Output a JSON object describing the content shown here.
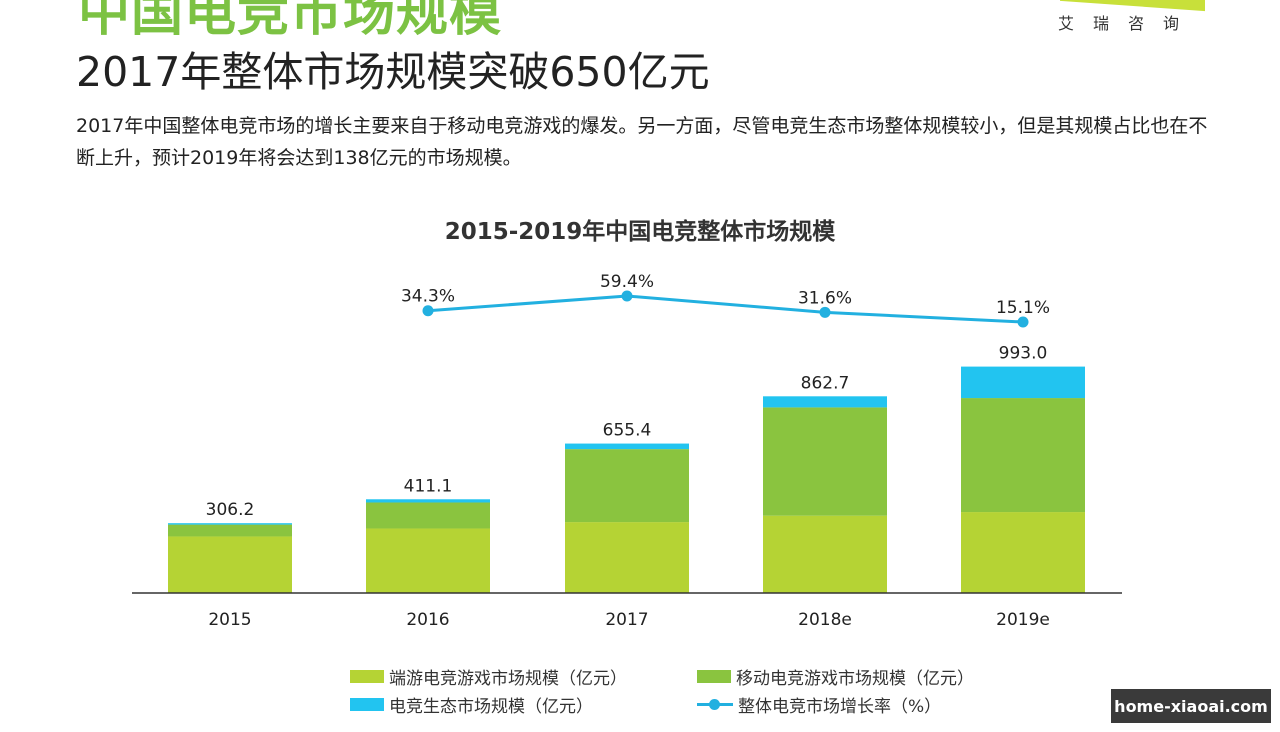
{
  "header": {
    "section_title": "中国电竞市场规模",
    "brand": "艾瑞咨询",
    "headline": "2017年整体市场规模突破650亿元",
    "description": "2017年中国整体电竞市场的增长主要来自于移动电竞游戏的爆发。另一方面，尽管电竞生态市场整体规模较小，但是其规模占比也在不断上升，预计2019年将会达到138亿元的市场规模。"
  },
  "chart_data": {
    "type": "bar",
    "stacked": true,
    "title": "2015-2019年中国电竞整体市场规模",
    "categories": [
      "2015",
      "2016",
      "2017",
      "2018e",
      "2019e"
    ],
    "series": [
      {
        "name": "端游电竞游戏市场规模（亿元）",
        "color": "#b5d334",
        "values": [
          248,
          283,
          311,
          339,
          355
        ]
      },
      {
        "name": "移动电竞游戏市场规模（亿元）",
        "color": "#8ac43f",
        "values": [
          52,
          114,
          320,
          475,
          500
        ]
      },
      {
        "name": "电竞生态市场规模（亿元）",
        "color": "#22c4f0",
        "values": [
          6.2,
          14.1,
          24.4,
          48.7,
          138
        ]
      }
    ],
    "totals": [
      "306.2",
      "411.1",
      "655.4",
      "862.7",
      "993.0"
    ],
    "line": {
      "name": "整体电竞市场增长率（%）",
      "color": "#22b0e0",
      "categories": [
        "2016",
        "2017",
        "2018e",
        "2019e"
      ],
      "values": [
        34.3,
        59.4,
        31.6,
        15.1
      ],
      "labels": [
        "34.3%",
        "59.4%",
        "31.6%",
        "15.1%"
      ]
    },
    "ylim": [
      0,
      1000
    ],
    "legend_position": "bottom"
  },
  "watermark": "home-xiaoai.com"
}
